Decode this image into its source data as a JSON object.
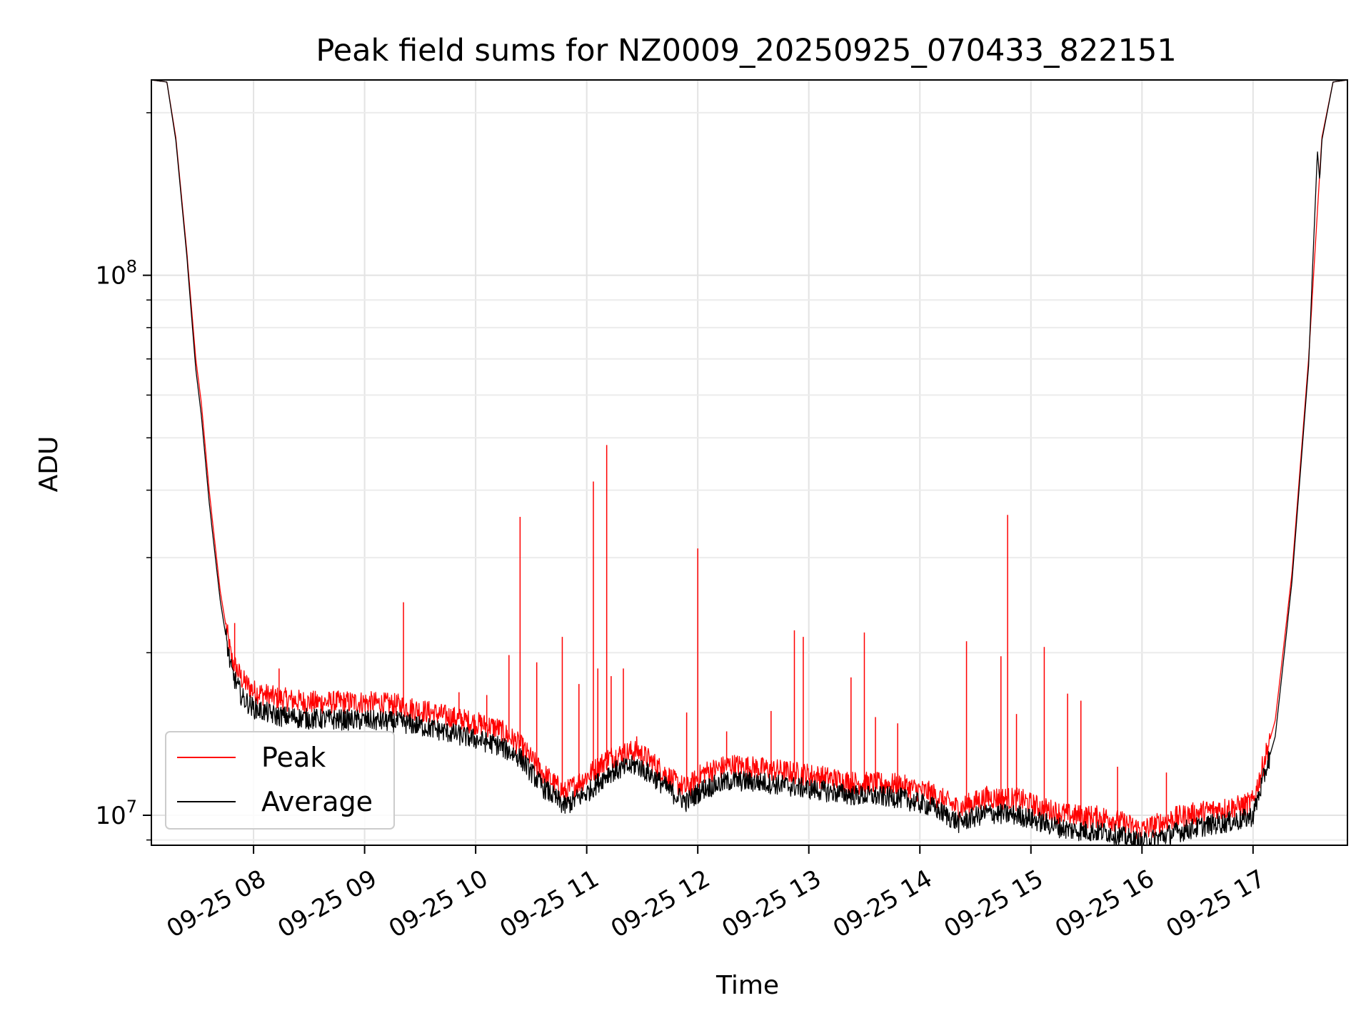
{
  "chart_data": {
    "type": "line",
    "title": "Peak field sums for NZ0009_20250925_070433_822151",
    "xlabel": "Time",
    "ylabel": "ADU",
    "x_unit": "hours (2025-09-25, local clock)",
    "xlim": [
      7.08,
      17.85
    ],
    "ylim": [
      8800000,
      230000000
    ],
    "yscale": "log",
    "grid": true,
    "legend_position": "lower-left",
    "x_ticks": [
      {
        "value": 8,
        "label": "09-25 08"
      },
      {
        "value": 9,
        "label": "09-25 09"
      },
      {
        "value": 10,
        "label": "09-25 10"
      },
      {
        "value": 11,
        "label": "09-25 11"
      },
      {
        "value": 12,
        "label": "09-25 12"
      },
      {
        "value": 13,
        "label": "09-25 13"
      },
      {
        "value": 14,
        "label": "09-25 14"
      },
      {
        "value": 15,
        "label": "09-25 15"
      },
      {
        "value": 16,
        "label": "09-25 16"
      },
      {
        "value": 17,
        "label": "09-25 17"
      }
    ],
    "y_ticks": [
      {
        "value": 10000000,
        "base": "10",
        "exp": "7"
      },
      {
        "value": 100000000,
        "base": "10",
        "exp": "8"
      }
    ],
    "series": [
      {
        "name": "Peak",
        "color": "#ff0000",
        "points": [
          [
            7.08,
            230000000
          ],
          [
            7.22,
            228000000
          ],
          [
            7.3,
            180000000
          ],
          [
            7.4,
            110000000
          ],
          [
            7.48,
            70000000
          ],
          [
            7.53,
            58000000
          ],
          [
            7.6,
            40000000
          ],
          [
            7.7,
            26000000
          ],
          [
            7.8,
            19500000
          ],
          [
            7.9,
            17800000
          ],
          [
            8.0,
            17000000
          ],
          [
            8.2,
            16500000
          ],
          [
            8.5,
            16200000
          ],
          [
            9.0,
            16200000
          ],
          [
            9.3,
            16000000
          ],
          [
            9.6,
            15500000
          ],
          [
            9.9,
            15000000
          ],
          [
            10.2,
            14500000
          ],
          [
            10.4,
            13500000
          ],
          [
            10.6,
            12000000
          ],
          [
            10.8,
            11000000
          ],
          [
            11.0,
            11800000
          ],
          [
            11.2,
            12800000
          ],
          [
            11.45,
            13200000
          ],
          [
            11.6,
            12500000
          ],
          [
            11.8,
            11500000
          ],
          [
            11.9,
            11200000
          ],
          [
            12.05,
            12000000
          ],
          [
            12.3,
            12400000
          ],
          [
            12.6,
            12200000
          ],
          [
            13.0,
            11900000
          ],
          [
            13.4,
            11500000
          ],
          [
            13.8,
            11400000
          ],
          [
            14.1,
            11000000
          ],
          [
            14.35,
            10300000
          ],
          [
            14.6,
            10800000
          ],
          [
            14.9,
            10700000
          ],
          [
            15.1,
            10300000
          ],
          [
            15.35,
            10000000
          ],
          [
            15.7,
            9900000
          ],
          [
            16.0,
            9400000
          ],
          [
            16.3,
            9900000
          ],
          [
            16.6,
            10200000
          ],
          [
            16.9,
            10400000
          ],
          [
            17.0,
            10600000
          ],
          [
            17.2,
            15000000
          ],
          [
            17.35,
            28000000
          ],
          [
            17.5,
            70000000
          ],
          [
            17.62,
            180000000
          ],
          [
            17.72,
            228000000
          ],
          [
            17.85,
            230000000
          ]
        ],
        "spikes": [
          [
            7.83,
            22700000
          ],
          [
            8.23,
            18700000
          ],
          [
            9.35,
            24800000
          ],
          [
            9.85,
            16900000
          ],
          [
            10.1,
            16700000
          ],
          [
            10.3,
            19800000
          ],
          [
            10.4,
            35700000
          ],
          [
            10.55,
            19200000
          ],
          [
            10.78,
            21400000
          ],
          [
            10.93,
            17500000
          ],
          [
            11.06,
            41500000
          ],
          [
            11.1,
            18700000
          ],
          [
            11.18,
            48500000
          ],
          [
            11.22,
            18100000
          ],
          [
            11.33,
            18700000
          ],
          [
            11.45,
            14000000
          ],
          [
            11.9,
            15500000
          ],
          [
            12.0,
            31200000
          ],
          [
            12.26,
            14300000
          ],
          [
            12.66,
            15600000
          ],
          [
            12.87,
            22000000
          ],
          [
            12.95,
            21400000
          ],
          [
            13.38,
            18000000
          ],
          [
            13.5,
            21800000
          ],
          [
            13.6,
            15200000
          ],
          [
            13.8,
            14800000
          ],
          [
            14.42,
            21000000
          ],
          [
            14.73,
            19700000
          ],
          [
            14.79,
            36000000
          ],
          [
            14.87,
            15400000
          ],
          [
            15.12,
            20500000
          ],
          [
            15.33,
            16800000
          ],
          [
            15.45,
            16300000
          ],
          [
            15.78,
            12300000
          ],
          [
            16.22,
            12000000
          ]
        ]
      },
      {
        "name": "Average",
        "color": "#000000",
        "points": [
          [
            7.08,
            230000000
          ],
          [
            7.22,
            228000000
          ],
          [
            7.3,
            178000000
          ],
          [
            7.4,
            108000000
          ],
          [
            7.48,
            67000000
          ],
          [
            7.53,
            55000000
          ],
          [
            7.6,
            38000000
          ],
          [
            7.7,
            25000000
          ],
          [
            7.8,
            18500000
          ],
          [
            7.9,
            16500000
          ],
          [
            8.0,
            15800000
          ],
          [
            8.2,
            15300000
          ],
          [
            8.5,
            15100000
          ],
          [
            9.0,
            15000000
          ],
          [
            9.3,
            14900000
          ],
          [
            9.6,
            14500000
          ],
          [
            9.9,
            14000000
          ],
          [
            10.2,
            13500000
          ],
          [
            10.4,
            12800000
          ],
          [
            10.6,
            11300000
          ],
          [
            10.8,
            10400000
          ],
          [
            11.0,
            11000000
          ],
          [
            11.2,
            12000000
          ],
          [
            11.45,
            12400000
          ],
          [
            11.6,
            11800000
          ],
          [
            11.8,
            10900000
          ],
          [
            11.9,
            10600000
          ],
          [
            12.05,
            11200000
          ],
          [
            12.3,
            11600000
          ],
          [
            12.6,
            11500000
          ],
          [
            13.0,
            11200000
          ],
          [
            13.4,
            10900000
          ],
          [
            13.8,
            10800000
          ],
          [
            14.1,
            10400000
          ],
          [
            14.35,
            9700000
          ],
          [
            14.6,
            10100000
          ],
          [
            14.9,
            10000000
          ],
          [
            15.1,
            9700000
          ],
          [
            15.35,
            9400000
          ],
          [
            15.7,
            9300000
          ],
          [
            16.0,
            8900000
          ],
          [
            16.3,
            9300000
          ],
          [
            16.6,
            9600000
          ],
          [
            16.9,
            9800000
          ],
          [
            17.0,
            10000000
          ],
          [
            17.2,
            14000000
          ],
          [
            17.35,
            27000000
          ],
          [
            17.5,
            68000000
          ],
          [
            17.58,
            170000000
          ],
          [
            17.6,
            150000000
          ],
          [
            17.62,
            178000000
          ],
          [
            17.72,
            228000000
          ],
          [
            17.85,
            230000000
          ]
        ]
      }
    ]
  }
}
